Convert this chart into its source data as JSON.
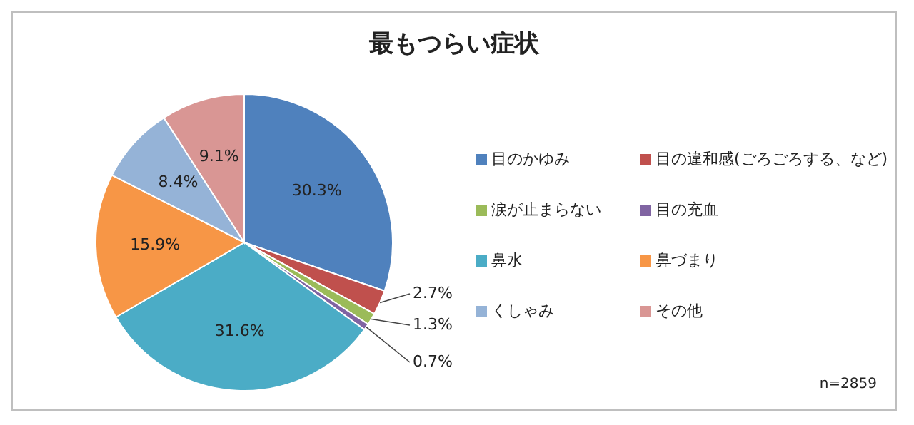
{
  "chart_data": {
    "type": "pie",
    "title": "最もつらい症状",
    "categories": [
      "目のかゆみ",
      "目の違和感(ごろごろする、など)",
      "涙が止まらない",
      "目の充血",
      "鼻水",
      "鼻づまり",
      "くしゃみ",
      "その他"
    ],
    "values": [
      30.3,
      2.7,
      1.3,
      0.7,
      31.6,
      15.9,
      8.4,
      9.1
    ],
    "colors": [
      "#4f81bd",
      "#c0504d",
      "#9bbb59",
      "#8064a2",
      "#4bacc6",
      "#f79646",
      "#95b3d7",
      "#d99694"
    ],
    "value_labels": [
      "30.3%",
      "2.7%",
      "1.3%",
      "0.7%",
      "31.6%",
      "15.9%",
      "8.4%",
      "9.1%"
    ],
    "legend": "right",
    "annotations": [
      "n=2859"
    ]
  }
}
